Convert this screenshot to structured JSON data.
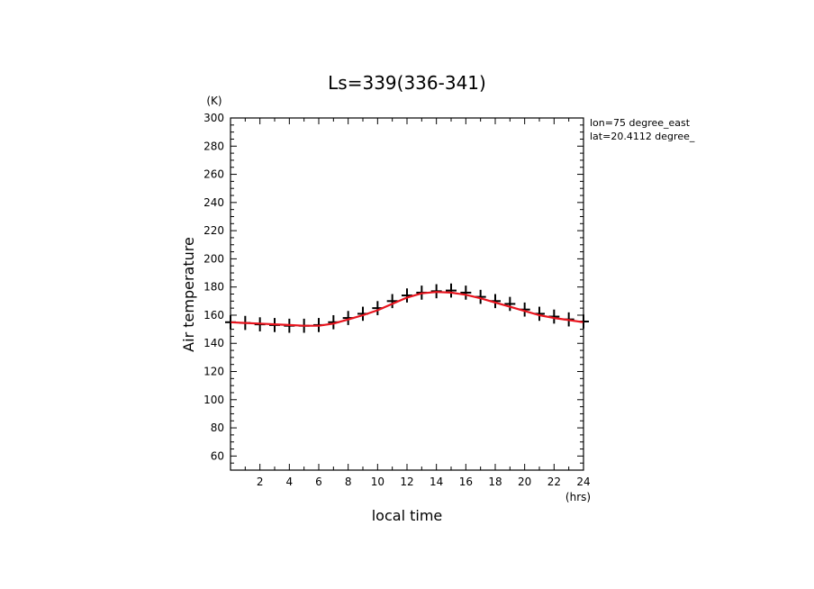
{
  "chart_data": {
    "type": "line",
    "title": "Ls=339(336-341)",
    "xlabel": "local time",
    "ylabel": "Air temperature",
    "x_unit": "(hrs)",
    "y_unit": "(K)",
    "xlim": [
      0,
      24
    ],
    "ylim": [
      50,
      300
    ],
    "x_ticks": [
      2,
      4,
      6,
      8,
      10,
      12,
      14,
      16,
      18,
      20,
      22,
      24
    ],
    "y_ticks": [
      60,
      80,
      100,
      120,
      140,
      160,
      180,
      200,
      220,
      240,
      260,
      280,
      300
    ],
    "annotations": [
      "lon=75 degree_east",
      "lat=20.4112 degree_"
    ],
    "grid": false,
    "colors": {
      "model_line": "#e8141e",
      "observations": "#000000"
    },
    "series": [
      {
        "style": "markers-with-errorbars",
        "x": [
          0,
          1,
          2,
          3,
          4,
          5,
          6,
          7,
          8,
          9,
          10,
          11,
          12,
          13,
          14,
          15,
          16,
          17,
          18,
          19,
          20,
          21,
          22,
          23,
          24
        ],
        "y": [
          155,
          154.5,
          153.5,
          153,
          152.5,
          152.5,
          153,
          155,
          158,
          161,
          165,
          170,
          174,
          176,
          177,
          177.5,
          176,
          173,
          170,
          168,
          164,
          161,
          159,
          157,
          155.5
        ],
        "error": 5
      },
      {
        "style": "line",
        "x": [
          0,
          1,
          2,
          3,
          4,
          5,
          6,
          7,
          8,
          9,
          10,
          11,
          12,
          13,
          14,
          15,
          16,
          17,
          18,
          19,
          20,
          21,
          22,
          23,
          24
        ],
        "y": [
          155,
          154.5,
          154,
          153.5,
          153,
          152.5,
          152.5,
          154,
          157,
          160,
          163.5,
          168,
          172.5,
          175.5,
          176.5,
          176,
          174.5,
          172,
          169,
          166,
          163,
          160,
          158,
          156.5,
          155
        ]
      }
    ]
  }
}
